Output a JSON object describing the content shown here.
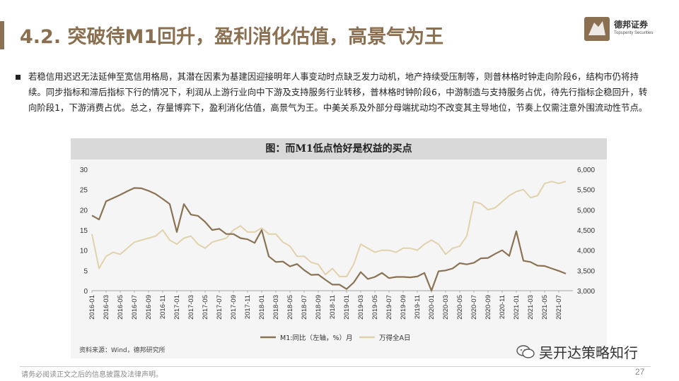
{
  "header": {
    "title": "4.2. 突破待M1回升，盈利消化估值，高景气为王",
    "logo_name": "德邦证券",
    "logo_sub": "Topsperity Securities"
  },
  "body": {
    "paragraph": "若稳信用迟迟无法延伸至宽信用格局，其潜在因素为基建因迎接明年人事变动时点缺乏发力动机，地产持续受压制等，则普林格时钟走向阶段6，结构市仍将持续。同步指标和滞后指标下行的情况下，利润从上游行业向中下游及支持服务行业转移，普林格时钟阶段6，中游制造与支持服务占优，待先行指标企稳回升，转向阶段1，下游消费占优。总之，存量博弈下，盈利消化估值，高景气为王。中美关系及外部分母端扰动均不改变其主导地位，节奏上仅需注意外围流动性节点。"
  },
  "chart_data": {
    "type": "line",
    "title": "图：而M1低点恰好是权益的买点",
    "x_ticks": [
      "2016-01",
      "2016-03",
      "2016-05",
      "2016-07",
      "2016-09",
      "2016-11",
      "2017-01",
      "2017-03",
      "2017-05",
      "2017-07",
      "2017-09",
      "2017-11",
      "2018-01",
      "2018-03",
      "2018-05",
      "2018-07",
      "2018-09",
      "2018-11",
      "2019-01",
      "2019-03",
      "2019-05",
      "2019-07",
      "2019-09",
      "2019-11",
      "2020-01",
      "2020-03",
      "2020-05",
      "2020-07",
      "2020-09",
      "2020-11",
      "2021-01",
      "2021-03",
      "2021-05",
      "2021-07"
    ],
    "y_left": {
      "min": 0,
      "max": 30,
      "ticks": [
        0,
        5,
        10,
        15,
        20,
        25,
        30
      ]
    },
    "y_right": {
      "min": 3000,
      "max": 6000,
      "ticks": [
        "3,000",
        "3,500",
        "4,000",
        "4,500",
        "5,000",
        "5,500",
        "6,000"
      ]
    },
    "series": [
      {
        "name": "M1:同比（左轴，%）月",
        "axis": "left",
        "color": "#8a7354",
        "x": [
          "2016-01",
          "2016-02",
          "2016-03",
          "2016-04",
          "2016-05",
          "2016-06",
          "2016-07",
          "2016-08",
          "2016-09",
          "2016-10",
          "2016-11",
          "2016-12",
          "2017-01",
          "2017-02",
          "2017-03",
          "2017-04",
          "2017-05",
          "2017-06",
          "2017-07",
          "2017-08",
          "2017-09",
          "2017-10",
          "2017-11",
          "2017-12",
          "2018-01",
          "2018-02",
          "2018-03",
          "2018-04",
          "2018-05",
          "2018-06",
          "2018-07",
          "2018-08",
          "2018-09",
          "2018-10",
          "2018-11",
          "2018-12",
          "2019-01",
          "2019-02",
          "2019-03",
          "2019-04",
          "2019-05",
          "2019-06",
          "2019-07",
          "2019-08",
          "2019-09",
          "2019-10",
          "2019-11",
          "2019-12",
          "2020-01",
          "2020-02",
          "2020-03",
          "2020-04",
          "2020-05",
          "2020-06",
          "2020-07",
          "2020-08",
          "2020-09",
          "2020-10",
          "2020-11",
          "2020-12",
          "2021-01",
          "2021-02",
          "2021-03",
          "2021-04",
          "2021-05",
          "2021-06",
          "2021-07",
          "2021-08"
        ],
        "values": [
          18.6,
          17.6,
          22.1,
          22.9,
          23.7,
          24.6,
          25.4,
          25.3,
          24.7,
          23.9,
          22.7,
          21.4,
          14.5,
          21.4,
          18.8,
          18.5,
          17.0,
          15.0,
          15.3,
          14.0,
          14.0,
          13.0,
          12.7,
          11.8,
          15.0,
          8.5,
          7.1,
          7.2,
          6.0,
          6.6,
          5.1,
          3.9,
          4.0,
          2.7,
          1.5,
          1.5,
          0.4,
          2.0,
          4.6,
          2.9,
          3.4,
          4.4,
          3.1,
          3.4,
          3.4,
          3.3,
          3.5,
          4.4,
          0.0,
          4.8,
          5.0,
          5.5,
          6.8,
          6.5,
          6.9,
          8.0,
          8.1,
          9.1,
          10.0,
          8.6,
          14.7,
          7.4,
          7.1,
          6.2,
          6.1,
          5.5,
          4.9,
          4.2
        ]
      },
      {
        "name": "万得全A日",
        "axis": "right",
        "color": "#e2d2ac",
        "x": [
          "2016-01",
          "2016-02",
          "2016-03",
          "2016-04",
          "2016-05",
          "2016-06",
          "2016-07",
          "2016-08",
          "2016-09",
          "2016-10",
          "2016-11",
          "2016-12",
          "2017-01",
          "2017-02",
          "2017-03",
          "2017-04",
          "2017-05",
          "2017-06",
          "2017-07",
          "2017-08",
          "2017-09",
          "2017-10",
          "2017-11",
          "2017-12",
          "2018-01",
          "2018-02",
          "2018-03",
          "2018-04",
          "2018-05",
          "2018-06",
          "2018-07",
          "2018-08",
          "2018-09",
          "2018-10",
          "2018-11",
          "2018-12",
          "2019-01",
          "2019-02",
          "2019-03",
          "2019-04",
          "2019-05",
          "2019-06",
          "2019-07",
          "2019-08",
          "2019-09",
          "2019-10",
          "2019-11",
          "2019-12",
          "2020-01",
          "2020-02",
          "2020-03",
          "2020-04",
          "2020-05",
          "2020-06",
          "2020-07",
          "2020-08",
          "2020-09",
          "2020-10",
          "2020-11",
          "2020-12",
          "2021-01",
          "2021-02",
          "2021-03",
          "2021-04",
          "2021-05",
          "2021-06",
          "2021-07",
          "2021-08"
        ],
        "values": [
          4400,
          3550,
          3850,
          3950,
          3900,
          4050,
          4200,
          4250,
          4300,
          4350,
          4500,
          4250,
          4150,
          4300,
          4350,
          4150,
          4050,
          4200,
          4250,
          4300,
          4500,
          4600,
          4450,
          4450,
          4550,
          4400,
          4400,
          4200,
          4100,
          3850,
          3850,
          3700,
          3650,
          3400,
          3550,
          3350,
          3350,
          3650,
          4150,
          4050,
          3950,
          4000,
          4000,
          3950,
          4050,
          4050,
          4000,
          4150,
          4250,
          4150,
          3900,
          4050,
          4100,
          4350,
          5200,
          5150,
          5000,
          5050,
          5200,
          5350,
          5450,
          5500,
          5300,
          5350,
          5650,
          5700,
          5650,
          5700
        ]
      }
    ],
    "legend": [
      "M1:同比（左轴，%）月",
      "万得全A日"
    ],
    "legend_position": "bottom"
  },
  "source": "资料来源：Wind，德邦研究所",
  "watermark": "吴开达策略知行",
  "footer": {
    "disclaimer": "请务必阅读正文之后的信息披露及法律声明。",
    "page": "27"
  }
}
